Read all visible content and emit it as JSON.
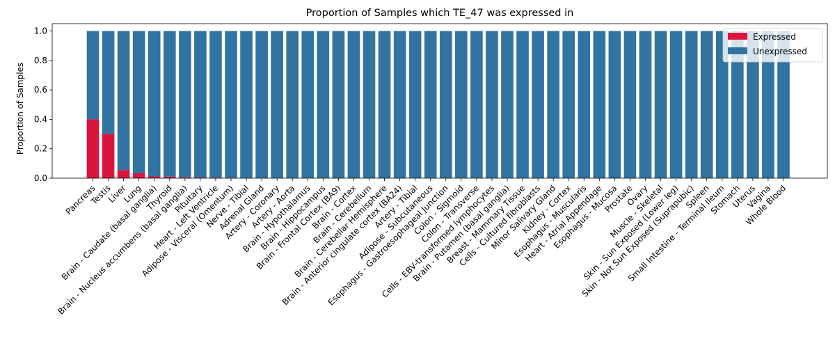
{
  "chart_data": {
    "type": "bar",
    "stacked": true,
    "title": "Proportion of Samples which TE_47 was expressed in",
    "xlabel": "",
    "ylabel": "Proportion of Samples",
    "ylim": [
      0,
      1.05
    ],
    "yticks": [
      "0.0",
      "0.2",
      "0.4",
      "0.6",
      "0.8",
      "1.0"
    ],
    "grid": false,
    "legend": "top-right",
    "categories": [
      "Pancreas",
      "Testis",
      "Liver",
      "Lung",
      "Brain - Caudate (basal ganglia)",
      "Thyroid",
      "Brain - Nucleus accumbens (basal ganglia)",
      "Pituitary",
      "Heart - Left Ventricle",
      "Adipose - Visceral (Omentum)",
      "Nerve - Tibial",
      "Adrenal Gland",
      "Artery - Coronary",
      "Artery - Aorta",
      "Brain - Hypothalamus",
      "Brain - Hippocampus",
      "Brain - Frontal Cortex (BA9)",
      "Brain - Cortex",
      "Brain - Cerebellum",
      "Brain - Cerebellar Hemisphere",
      "Brain - Anterior cingulate cortex (BA24)",
      "Artery - Tibial",
      "Adipose - Subcutaneous",
      "Esophagus - Gastroesophageal Junction",
      "Colon - Sigmoid",
      "Colon - Transverse",
      "Cells - EBV-transformed lymphocytes",
      "Brain - Putamen (basal ganglia)",
      "Breast - Mammary Tissue",
      "Cells - Cultured fibroblasts",
      "Minor Salivary Gland",
      "Kidney - Cortex",
      "Esophagus - Muscularis",
      "Heart - Atrial Appendage",
      "Esophagus - Mucosa",
      "Prostate",
      "Ovary",
      "Muscle - Skeletal",
      "Skin - Sun Exposed (Lower leg)",
      "Skin - Not Sun Exposed (Suprapubic)",
      "Spleen",
      "Small Intestine - Terminal Ileum",
      "Stomach",
      "Uterus",
      "Vagina",
      "Whole Blood"
    ],
    "series": [
      {
        "name": "Expressed",
        "color": "#dc143c",
        "values": [
          0.4,
          0.3,
          0.056,
          0.033,
          0.012,
          0.01,
          0.006,
          0.005,
          0.004,
          0.003,
          0,
          0,
          0,
          0,
          0,
          0,
          0,
          0,
          0,
          0,
          0,
          0,
          0,
          0,
          0,
          0,
          0,
          0,
          0,
          0,
          0,
          0,
          0,
          0,
          0,
          0,
          0,
          0,
          0,
          0,
          0,
          0,
          0,
          0,
          0,
          0
        ]
      },
      {
        "name": "Unexpressed",
        "color": "#3274a1",
        "values": [
          0.6,
          0.7,
          0.944,
          0.967,
          0.988,
          0.99,
          0.994,
          0.995,
          0.996,
          0.997,
          1,
          1,
          1,
          1,
          1,
          1,
          1,
          1,
          1,
          1,
          1,
          1,
          1,
          1,
          1,
          1,
          1,
          1,
          1,
          1,
          1,
          1,
          1,
          1,
          1,
          1,
          1,
          1,
          1,
          1,
          1,
          1,
          1,
          1,
          1,
          1
        ]
      }
    ]
  }
}
